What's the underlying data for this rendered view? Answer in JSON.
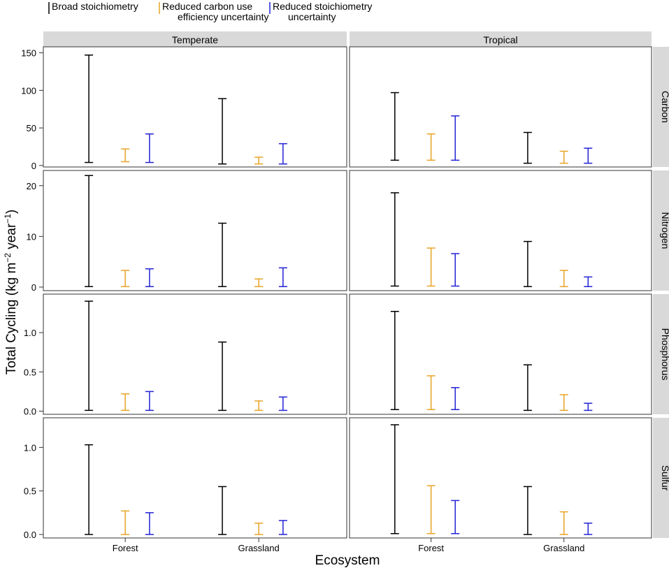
{
  "chart_data": {
    "type": "errorbar",
    "xlabel": "Ecosystem",
    "ylabel_parts": [
      "Total Cycling (kg m",
      "−2",
      " year",
      "−1",
      ")"
    ],
    "legend": [
      {
        "lines": [
          "Broad stoichiometry"
        ],
        "color": "#000000"
      },
      {
        "lines": [
          "Reduced carbon use",
          "efficiency uncertainty"
        ],
        "color": "#e8a325"
      },
      {
        "lines": [
          "Reduced stoichiometry",
          "uncertainty"
        ],
        "color": "#2222d6"
      }
    ],
    "columns": [
      "Temperate",
      "Tropical"
    ],
    "categories": [
      "Forest",
      "Grassland"
    ],
    "facets": [
      {
        "name": "Carbon",
        "ylim": [
          -2,
          158
        ],
        "ticks": [
          0,
          50,
          100,
          150
        ],
        "tick_labels": [
          "0",
          "50",
          "100",
          "150"
        ],
        "panels": [
          {
            "column": "Temperate",
            "bars": {
              "Forest": [
                [
                  4,
                  147
                ],
                [
                  5,
                  22
                ],
                [
                  4,
                  42
                ]
              ],
              "Grassland": [
                [
                  2,
                  89
                ],
                [
                  2,
                  11
                ],
                [
                  2,
                  29
                ]
              ]
            }
          },
          {
            "column": "Tropical",
            "bars": {
              "Forest": [
                [
                  7,
                  97
                ],
                [
                  7,
                  42
                ],
                [
                  7,
                  66
                ]
              ],
              "Grassland": [
                [
                  3,
                  44
                ],
                [
                  3,
                  19
                ],
                [
                  3,
                  23
                ]
              ]
            }
          }
        ]
      },
      {
        "name": "Nitrogen",
        "ylim": [
          -0.7,
          23.0
        ],
        "ticks": [
          0,
          10,
          20
        ],
        "tick_labels": [
          "0",
          "10",
          "20"
        ],
        "panels": [
          {
            "column": "Temperate",
            "bars": {
              "Forest": [
                [
                  0.1,
                  22.0
                ],
                [
                  0.1,
                  3.3
                ],
                [
                  0.1,
                  3.6
                ]
              ],
              "Grassland": [
                [
                  0.1,
                  12.6
                ],
                [
                  0.1,
                  1.6
                ],
                [
                  0.1,
                  3.8
                ]
              ]
            }
          },
          {
            "column": "Tropical",
            "bars": {
              "Forest": [
                [
                  0.2,
                  18.6
                ],
                [
                  0.2,
                  7.7
                ],
                [
                  0.2,
                  6.6
                ]
              ],
              "Grassland": [
                [
                  0.1,
                  9.0
                ],
                [
                  0.1,
                  3.3
                ],
                [
                  0.1,
                  2.0
                ]
              ]
            }
          }
        ]
      },
      {
        "name": "Phosphorus",
        "ylim": [
          -0.04,
          1.49
        ],
        "ticks": [
          0.0,
          0.5,
          1.0
        ],
        "tick_labels": [
          "0.0",
          "0.5",
          "1.0"
        ],
        "panels": [
          {
            "column": "Temperate",
            "bars": {
              "Forest": [
                [
                  0.01,
                  1.4
                ],
                [
                  0.01,
                  0.22
                ],
                [
                  0.01,
                  0.25
                ]
              ],
              "Grassland": [
                [
                  0.01,
                  0.88
                ],
                [
                  0.01,
                  0.13
                ],
                [
                  0.01,
                  0.18
                ]
              ]
            }
          },
          {
            "column": "Tropical",
            "bars": {
              "Forest": [
                [
                  0.02,
                  1.27
                ],
                [
                  0.02,
                  0.45
                ],
                [
                  0.02,
                  0.3
                ]
              ],
              "Grassland": [
                [
                  0.01,
                  0.59
                ],
                [
                  0.01,
                  0.21
                ],
                [
                  0.01,
                  0.1
                ]
              ]
            }
          }
        ]
      },
      {
        "name": "Sulfur",
        "ylim": [
          -0.04,
          1.34
        ],
        "ticks": [
          0.0,
          0.5,
          1.0
        ],
        "tick_labels": [
          "0.0",
          "0.5",
          "1.0"
        ],
        "panels": [
          {
            "column": "Temperate",
            "bars": {
              "Forest": [
                [
                  0.0,
                  1.03
                ],
                [
                  0.0,
                  0.27
                ],
                [
                  0.0,
                  0.25
                ]
              ],
              "Grassland": [
                [
                  0.0,
                  0.55
                ],
                [
                  0.0,
                  0.13
                ],
                [
                  0.0,
                  0.16
                ]
              ]
            }
          },
          {
            "column": "Tropical",
            "bars": {
              "Forest": [
                [
                  0.01,
                  1.26
                ],
                [
                  0.01,
                  0.56
                ],
                [
                  0.01,
                  0.39
                ]
              ],
              "Grassland": [
                [
                  0.0,
                  0.55
                ],
                [
                  0.0,
                  0.26
                ],
                [
                  0.0,
                  0.13
                ]
              ]
            }
          }
        ]
      }
    ]
  }
}
